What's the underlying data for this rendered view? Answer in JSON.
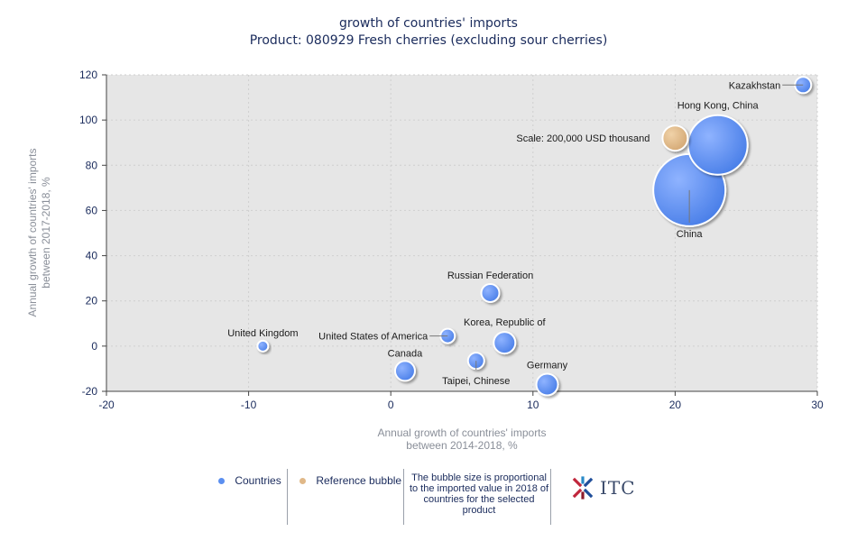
{
  "header": {
    "title": "growth of countries' imports",
    "subtitle": "Product: 080929 Fresh cherries (excluding sour cherries)"
  },
  "chart_data": {
    "type": "scatter",
    "title": "growth of countries' imports",
    "subtitle": "Product: 080929 Fresh cherries (excluding sour cherries)",
    "xlabel_lines": [
      "Annual growth of countries' imports",
      "between 2014-2018, %"
    ],
    "ylabel_lines": [
      "Annual growth of countries' imports",
      "between 2017-2018, %"
    ],
    "xlim": [
      -20,
      30
    ],
    "ylim": [
      -20,
      120
    ],
    "x_ticks": [
      -20,
      -10,
      0,
      10,
      20,
      30
    ],
    "y_ticks": [
      -20,
      0,
      20,
      40,
      60,
      80,
      100,
      120
    ],
    "series": [
      {
        "name": "Countries",
        "color": "#5b8ff0",
        "points": [
          {
            "label": "Kazakhstan",
            "x": 29,
            "y": 115.5,
            "size": 9
          },
          {
            "label": "Hong Kong, China",
            "x": 23,
            "y": 89,
            "size": 33
          },
          {
            "label": "China",
            "x": 21,
            "y": 69,
            "size": 40
          },
          {
            "label": "Russian Federation",
            "x": 7,
            "y": 23.5,
            "size": 10
          },
          {
            "label": "United Kingdom",
            "x": -9,
            "y": 0,
            "size": 6
          },
          {
            "label": "United States of America",
            "x": 4,
            "y": 4.5,
            "size": 8
          },
          {
            "label": "Korea, Republic of",
            "x": 8,
            "y": 1.5,
            "size": 12
          },
          {
            "label": "Canada",
            "x": 1,
            "y": -11,
            "size": 11
          },
          {
            "label": "Taipei, Chinese",
            "x": 6,
            "y": -6.5,
            "size": 9
          },
          {
            "label": "Germany",
            "x": 11,
            "y": -17,
            "size": 12
          }
        ]
      },
      {
        "name": "Reference bubble",
        "color": "#e0b888",
        "points": [
          {
            "label": "Scale: 200,000 USD thousand",
            "x": 20,
            "y": 92,
            "size": 14
          }
        ]
      }
    ]
  },
  "legend": {
    "countries_label": "Countries",
    "countries_color": "#5b8ff0",
    "reference_label": "Reference bubble",
    "reference_color": "#e0b888",
    "note": "The bubble size is proportional to the imported value in 2018 of countries for the selected product",
    "logo_text": "ITC"
  }
}
